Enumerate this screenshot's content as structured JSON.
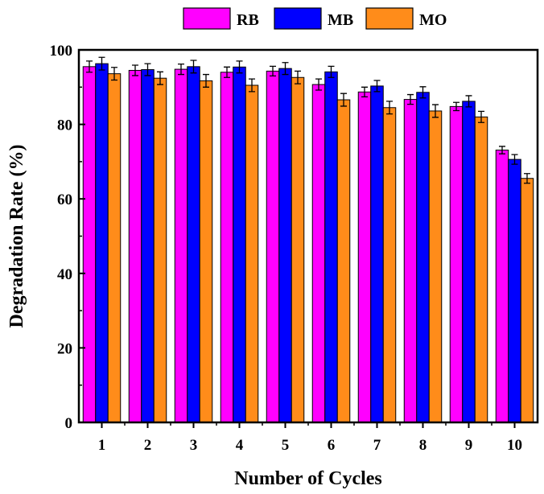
{
  "chart_data": {
    "type": "bar",
    "title": "",
    "xlabel": "Number of Cycles",
    "ylabel": "Degradation Rate (%)",
    "ylim": [
      0,
      100
    ],
    "yticks": [
      0,
      20,
      40,
      60,
      80,
      100
    ],
    "categories": [
      "1",
      "2",
      "3",
      "4",
      "5",
      "6",
      "7",
      "8",
      "9",
      "10"
    ],
    "legend_position": "top",
    "series": [
      {
        "name": "RB",
        "color": "#ff00ff",
        "values": [
          95.5,
          94.5,
          94.8,
          94.0,
          94.3,
          90.7,
          88.7,
          86.7,
          84.8,
          73.1
        ],
        "errors": [
          1.5,
          1.4,
          1.4,
          1.4,
          1.3,
          1.5,
          1.3,
          1.3,
          1.1,
          1.0
        ]
      },
      {
        "name": "MB",
        "color": "#0000ff",
        "values": [
          96.3,
          94.7,
          95.5,
          95.4,
          95.0,
          94.1,
          90.3,
          88.6,
          86.2,
          70.6
        ],
        "errors": [
          1.7,
          1.6,
          1.7,
          1.6,
          1.6,
          1.5,
          1.5,
          1.5,
          1.5,
          1.3
        ]
      },
      {
        "name": "MO",
        "color": "#ff8c1a",
        "values": [
          93.6,
          92.4,
          91.7,
          90.5,
          92.6,
          86.6,
          84.5,
          83.6,
          82.0,
          65.5
        ],
        "errors": [
          1.7,
          1.7,
          1.7,
          1.7,
          1.7,
          1.7,
          1.7,
          1.7,
          1.5,
          1.3
        ]
      }
    ]
  }
}
